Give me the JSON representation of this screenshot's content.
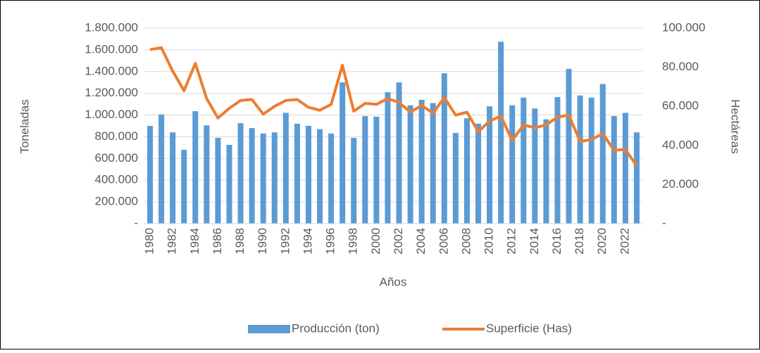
{
  "chart_data": {
    "type": "bar_line",
    "x_label": "Años",
    "y_label": "Toneladas",
    "y2_label": "Hectáreas",
    "categories": [
      "1980",
      null,
      "1982",
      null,
      "1984",
      null,
      "1986",
      null,
      "1988",
      null,
      "1990",
      null,
      "1992",
      null,
      "1994",
      null,
      "1996",
      null,
      "1998",
      null,
      "2000",
      null,
      "2002",
      null,
      "2004",
      null,
      "2006",
      null,
      "2008",
      null,
      "2010",
      null,
      "2012",
      null,
      "2014",
      null,
      "2016",
      null,
      "2018",
      null,
      "2020",
      null,
      "2022",
      null
    ],
    "series": [
      {
        "name": "Producción (ton)",
        "color": "#5b9bd5",
        "type": "bar",
        "values": [
          900000,
          1005000,
          840000,
          680000,
          1035000,
          905000,
          790000,
          725000,
          925000,
          880000,
          830000,
          840000,
          1020000,
          920000,
          900000,
          870000,
          830000,
          1300000,
          790000,
          990000,
          985000,
          1210000,
          1300000,
          1090000,
          1140000,
          1110000,
          1385000,
          835000,
          970000,
          920000,
          1080000,
          1675000,
          1090000,
          1160000,
          1060000,
          960000,
          1165000,
          1425000,
          1180000,
          1160000,
          1285000,
          990000,
          1020000,
          840000
        ]
      },
      {
        "name": "Superficie (Has)",
        "color": "#ed7d31",
        "type": "line",
        "axis": "y2",
        "values": [
          89000,
          90000,
          78000,
          68000,
          82000,
          64000,
          54000,
          59000,
          63000,
          63500,
          56000,
          60000,
          63000,
          63500,
          59500,
          58000,
          61000,
          81000,
          57500,
          61500,
          61000,
          64000,
          62000,
          57000,
          60500,
          56500,
          64500,
          55500,
          57000,
          47000,
          52500,
          55000,
          42500,
          50500,
          49000,
          50500,
          54500,
          55500,
          42000,
          43000,
          46000,
          37500,
          38000,
          29500
        ]
      }
    ],
    "ylim": [
      0,
      1800000
    ],
    "yticks": [
      {
        "value": 0,
        "label": "-"
      },
      {
        "value": 200000,
        "label": "200.000"
      },
      {
        "value": 400000,
        "label": "400.000"
      },
      {
        "value": 600000,
        "label": "600.000"
      },
      {
        "value": 800000,
        "label": "800.000"
      },
      {
        "value": 1000000,
        "label": "1.000.000"
      },
      {
        "value": 1200000,
        "label": "1.200.000"
      },
      {
        "value": 1400000,
        "label": "1.400.000"
      },
      {
        "value": 1600000,
        "label": "1.600.000"
      },
      {
        "value": 1800000,
        "label": "1.800.000"
      }
    ],
    "y2lim": [
      0,
      100000
    ],
    "y2ticks": [
      {
        "value": 0,
        "label": "-"
      },
      {
        "value": 20000,
        "label": "20.000"
      },
      {
        "value": 40000,
        "label": "40.000"
      },
      {
        "value": 60000,
        "label": "60.000"
      },
      {
        "value": 80000,
        "label": "80.000"
      },
      {
        "value": 100000,
        "label": "100.000"
      }
    ],
    "grid": true,
    "legend": "bottom"
  }
}
